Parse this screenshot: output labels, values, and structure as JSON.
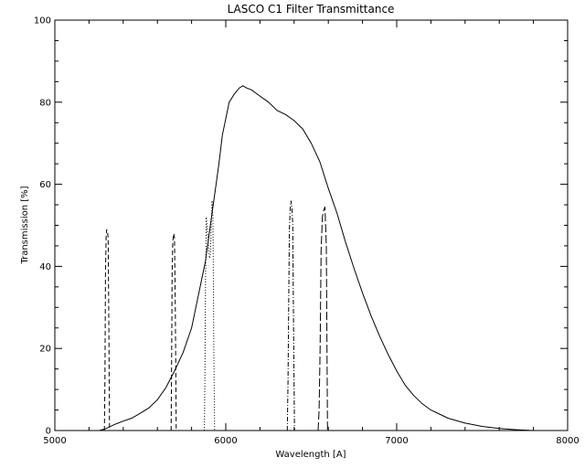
{
  "chart_data": {
    "type": "line",
    "title": "LASCO C1   Filter Transmittance",
    "xlabel": "Wavelength [A]",
    "ylabel": "Transmission [%]",
    "xlim": [
      5000,
      8000
    ],
    "ylim": [
      0,
      100
    ],
    "x_ticks": [
      "5000",
      "6000",
      "7000",
      "8000"
    ],
    "y_ticks": [
      "0",
      "20",
      "40",
      "60",
      "80",
      "100"
    ],
    "grid": false,
    "series": [
      {
        "style": "solid",
        "x": [
          5260,
          5300,
          5350,
          5400,
          5450,
          5500,
          5550,
          5600,
          5650,
          5700,
          5750,
          5800,
          5830,
          5860,
          5880,
          5900,
          5920,
          5940,
          5960,
          5980,
          6000,
          6020,
          6050,
          6080,
          6100,
          6120,
          6150,
          6200,
          6250,
          6300,
          6350,
          6400,
          6450,
          6500,
          6550,
          6600,
          6650,
          6700,
          6750,
          6800,
          6850,
          6900,
          6950,
          7000,
          7050,
          7100,
          7150,
          7200,
          7250,
          7300,
          7400,
          7500,
          7600,
          7700,
          7800
        ],
        "y": [
          0,
          0.5,
          1.5,
          2.3,
          3,
          4.2,
          5.5,
          7.5,
          10.5,
          14.5,
          19,
          25,
          31,
          37,
          41,
          47,
          53,
          59,
          65,
          72,
          76,
          80,
          82,
          83.5,
          84,
          83.5,
          83,
          81.5,
          80,
          78,
          77,
          75.5,
          73.5,
          70,
          65.5,
          59,
          53,
          46,
          39.5,
          33.5,
          28,
          23,
          18.5,
          14.5,
          11,
          8.5,
          6.5,
          5,
          4,
          3,
          1.8,
          1,
          0.5,
          0.2,
          0
        ]
      },
      {
        "style": "dashed",
        "x": [
          5290,
          5293,
          5296,
          5300,
          5303,
          5308,
          5312,
          5316,
          5320
        ],
        "y": [
          0,
          12,
          38,
          47,
          49,
          48.5,
          47,
          25,
          0
        ]
      },
      {
        "style": "dashed",
        "x": [
          5680,
          5683,
          5686,
          5690,
          5695,
          5700,
          5705,
          5710
        ],
        "y": [
          0,
          15,
          38,
          46,
          48,
          47,
          30,
          0
        ]
      },
      {
        "style": "dotted",
        "x": [
          5875,
          5878,
          5882,
          5886,
          5890,
          5895,
          5900,
          5905,
          5910,
          5915,
          5920,
          5925,
          5930,
          5935
        ],
        "y": [
          0,
          14,
          38,
          52,
          50,
          47,
          44,
          42,
          43,
          50,
          56,
          52,
          20,
          0
        ]
      },
      {
        "style": "dash-dot",
        "x": [
          6360,
          6364,
          6368,
          6372,
          6377,
          6382,
          6387,
          6392,
          6397,
          6402
        ],
        "y": [
          0,
          12,
          30,
          49,
          54,
          56,
          54,
          50,
          24,
          0
        ]
      },
      {
        "style": "long-dash",
        "x": [
          6540,
          6546,
          6552,
          6558,
          6565,
          6572,
          6580,
          6588,
          6595
        ],
        "y": [
          0,
          5,
          20,
          44,
          52,
          53.5,
          54.5,
          45,
          0
        ]
      }
    ]
  }
}
